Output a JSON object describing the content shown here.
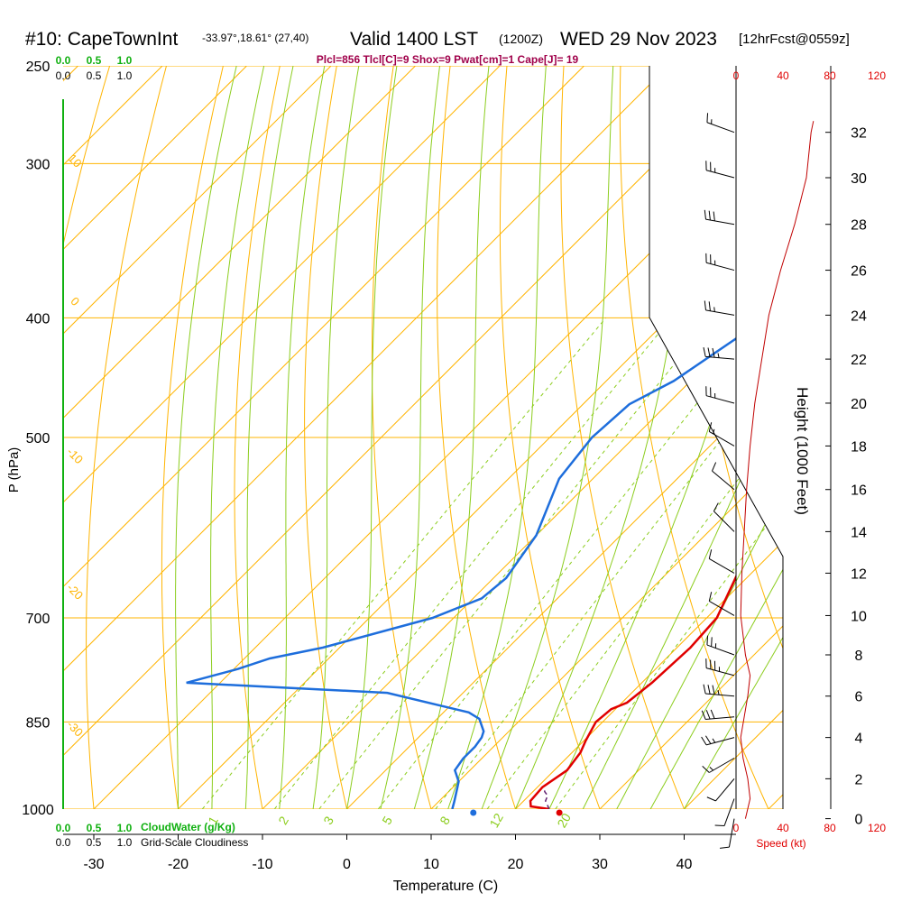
{
  "header": {
    "station": "#10: CapeTownInt",
    "coords": "-33.97°,18.61° (27,40)",
    "valid": "Valid 1400 LST",
    "zulu": "(1200Z)",
    "date": "WED 29 Nov 2023",
    "fcst": "[12hrFcst@0559z]",
    "indices": "Plcl=856 Tlcl[C]=9 Shox=9 Pwat[cm]=1 Cape[J]= 19"
  },
  "colors": {
    "isobar": "#ffb400",
    "isotherm": "#ffb400",
    "dry_adiabat": "#ffb400",
    "moist_adiabat": "#8ccd1e",
    "mixing_ratio": "#8ccd1e",
    "temperature": "#e00000",
    "dewpoint": "#1e6edc",
    "speed": "#c00000",
    "cloud": "#10b010"
  },
  "chart_data": {
    "type": "line",
    "title": "#10: CapeTownInt",
    "xlabel": "Temperature (C)",
    "ylabel": "P (hPa)",
    "y2label": "Height (1000 Feet)",
    "log_y": true,
    "xlim": [
      -34,
      46
    ],
    "ylim": [
      1000,
      250
    ],
    "x_ticks": [
      "-30",
      "-20",
      "-10",
      "0",
      "10",
      "20",
      "30",
      "40"
    ],
    "x_tick_values": [
      -30,
      -20,
      -10,
      0,
      10,
      20,
      30,
      40
    ],
    "p_ticks": [
      "250",
      "300",
      "400",
      "500",
      "700",
      "850",
      "1000"
    ],
    "p_tick_values": [
      250,
      300,
      400,
      500,
      700,
      850,
      1000
    ],
    "height_ticks": [
      "0",
      "2",
      "4",
      "6",
      "8",
      "10",
      "12",
      "14",
      "16",
      "18",
      "20",
      "22",
      "24",
      "26",
      "28",
      "30",
      "32"
    ],
    "height_to_p": [
      [
        0,
        1018
      ],
      [
        2,
        945
      ],
      [
        4,
        875
      ],
      [
        6,
        810
      ],
      [
        8,
        750
      ],
      [
        10,
        697
      ],
      [
        12,
        644
      ],
      [
        14,
        596
      ],
      [
        16,
        551
      ],
      [
        18,
        508
      ],
      [
        20,
        469
      ],
      [
        22,
        432
      ],
      [
        24,
        398
      ],
      [
        26,
        366
      ],
      [
        28,
        336
      ],
      [
        30,
        308
      ],
      [
        32,
        283
      ]
    ],
    "isotherm_labels": [
      "0",
      "10",
      "20",
      "30"
    ],
    "isotherm_label_values": [
      0,
      10,
      20,
      30
    ],
    "left_labels": [
      "10",
      "0",
      "-10",
      "-20",
      "-30"
    ],
    "left_label_p": [
      300,
      390,
      520,
      670,
      865
    ],
    "mix_labels": [
      "1",
      "2",
      "3",
      "5",
      "8",
      "12",
      "20"
    ],
    "mix_values": [
      1,
      2,
      3,
      5,
      8,
      12,
      20
    ],
    "series": [
      {
        "name": "Temperature",
        "points": [
          [
            24.0,
            1000
          ],
          [
            21.5,
            995
          ],
          [
            20.8,
            985
          ],
          [
            20.6,
            960
          ],
          [
            21.5,
            930
          ],
          [
            21.0,
            900
          ],
          [
            20.2,
            880
          ],
          [
            19.2,
            850
          ],
          [
            19.5,
            830
          ],
          [
            20.6,
            820
          ],
          [
            21.2,
            790
          ],
          [
            21.6,
            740
          ],
          [
            21.2,
            700
          ],
          [
            16.0,
            600
          ],
          [
            12.8,
            550
          ],
          [
            9.5,
            500
          ],
          [
            7.2,
            470
          ],
          [
            5.2,
            450
          ],
          [
            3.8,
            400
          ],
          [
            3.0,
            350
          ],
          [
            1.8,
            300
          ],
          [
            0,
            270
          ]
        ]
      },
      {
        "name": "Dewpoint",
        "points": [
          [
            12.5,
            1000
          ],
          [
            11.8,
            985
          ],
          [
            10.0,
            950
          ],
          [
            8.2,
            930
          ],
          [
            7.8,
            910
          ],
          [
            7.8,
            890
          ],
          [
            7.5,
            875
          ],
          [
            7.0,
            865
          ],
          [
            5.0,
            845
          ],
          [
            3.0,
            835
          ],
          [
            -9.0,
            805
          ],
          [
            -34,
            790
          ],
          [
            -29.5,
            770
          ],
          [
            -27.0,
            755
          ],
          [
            -22.0,
            740
          ],
          [
            -12.5,
            700
          ],
          [
            -9.0,
            675
          ],
          [
            -8.5,
            650
          ],
          [
            -10.0,
            600
          ],
          [
            -14.0,
            540
          ],
          [
            -15.0,
            500
          ],
          [
            -14.5,
            470
          ],
          [
            -12.0,
            450
          ],
          [
            -8.5,
            400
          ],
          [
            -6.0,
            370
          ],
          [
            -4.0,
            350
          ],
          [
            -3.0,
            325
          ],
          [
            -3.5,
            300
          ],
          [
            -6.0,
            270
          ]
        ]
      },
      {
        "name": "Parcel",
        "points": [
          [
            24.0,
            1000
          ],
          [
            22.6,
            985
          ],
          [
            22.2,
            975
          ],
          [
            21.4,
            968
          ],
          [
            20.8,
            960
          ]
        ]
      }
    ],
    "markers": [
      {
        "name": "surface-dewpoint",
        "x": 15.0,
        "p": 1000
      },
      {
        "name": "surface-temperature",
        "x": 25.2,
        "p": 1000
      }
    ],
    "wind_barbs": [
      {
        "height": 32,
        "speed": 15,
        "dir": 290
      },
      {
        "height": 30,
        "speed": 25,
        "dir": 285
      },
      {
        "height": 28,
        "speed": 30,
        "dir": 280
      },
      {
        "height": 26,
        "speed": 25,
        "dir": 285
      },
      {
        "height": 24,
        "speed": 25,
        "dir": 280
      },
      {
        "height": 22,
        "speed": 35,
        "dir": 275
      },
      {
        "height": 20,
        "speed": 25,
        "dir": 285
      },
      {
        "height": 18,
        "speed": 15,
        "dir": 300
      },
      {
        "height": 16,
        "speed": 10,
        "dir": 310
      },
      {
        "height": 14,
        "speed": 10,
        "dir": 315
      },
      {
        "height": 12,
        "speed": 10,
        "dir": 300
      },
      {
        "height": 10,
        "speed": 10,
        "dir": 300
      },
      {
        "height": 8,
        "speed": 25,
        "dir": 290
      },
      {
        "height": 7,
        "speed": 35,
        "dir": 285
      },
      {
        "height": 6,
        "speed": 35,
        "dir": 275
      },
      {
        "height": 5,
        "speed": 30,
        "dir": 265
      },
      {
        "height": 4,
        "speed": 25,
        "dir": 255
      },
      {
        "height": 3,
        "speed": 15,
        "dir": 240
      },
      {
        "height": 2,
        "speed": 10,
        "dir": 220
      },
      {
        "height": 1,
        "speed": 10,
        "dir": 200
      },
      {
        "height": 0,
        "speed": 10,
        "dir": 190
      }
    ],
    "speed_profile": [
      [
        0,
        8
      ],
      [
        1,
        12
      ],
      [
        2,
        10
      ],
      [
        3,
        6
      ],
      [
        4,
        4
      ],
      [
        5,
        7
      ],
      [
        6,
        10
      ],
      [
        7,
        12
      ],
      [
        8,
        8
      ],
      [
        9,
        6
      ],
      [
        10,
        4
      ],
      [
        12,
        5
      ],
      [
        14,
        7
      ],
      [
        16,
        9
      ],
      [
        18,
        12
      ],
      [
        20,
        16
      ],
      [
        22,
        22
      ],
      [
        24,
        28
      ],
      [
        26,
        38
      ],
      [
        28,
        50
      ],
      [
        30,
        60
      ],
      [
        32,
        64
      ],
      [
        33,
        66
      ]
    ],
    "speed_ticks": [
      "0",
      "40",
      "80",
      "120"
    ],
    "speed_tick_values": [
      0,
      40,
      80,
      120
    ],
    "speed_label": "Speed (kt)",
    "cloudwater_ticks": [
      "0.0",
      "0.5",
      "1.0"
    ],
    "cloudwater_label": "CloudWater (g/Kg)",
    "cloudiness_ticks": [
      "0.0",
      "0.5",
      "1.0"
    ],
    "cloudiness_label": "Grid-Scale Cloudiness"
  }
}
